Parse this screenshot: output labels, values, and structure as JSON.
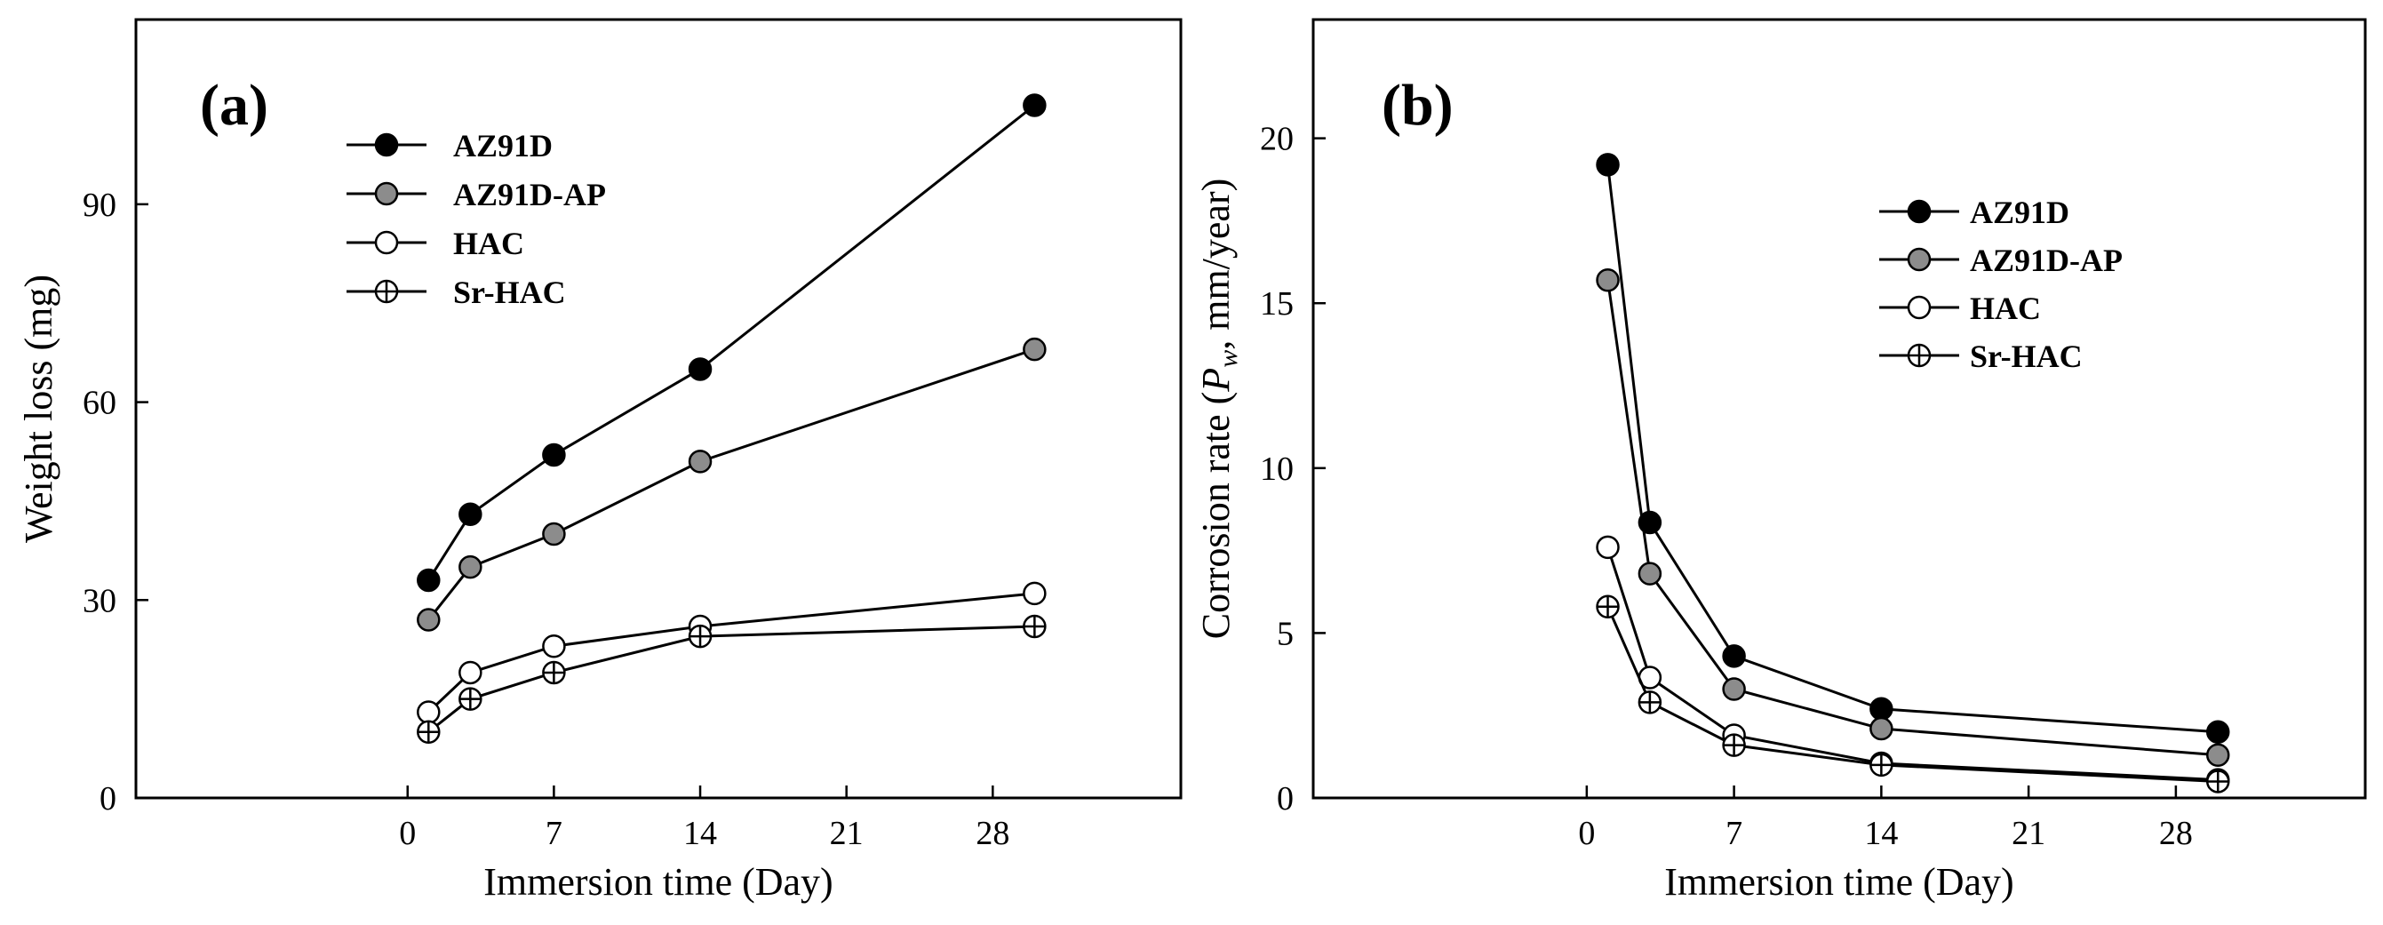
{
  "chart_data": [
    {
      "type": "line",
      "panel_label": "(a)",
      "xlabel": "Immersion time (Day)",
      "ylabel": "Weight loss (mg)",
      "xlim": [
        -13,
        37
      ],
      "ylim": [
        0,
        118
      ],
      "xticks": [
        0,
        7,
        14,
        21,
        28
      ],
      "yticks": [
        0,
        30,
        60,
        90
      ],
      "legend_position": "top-left",
      "x": [
        1,
        3,
        7,
        14,
        30
      ],
      "series": [
        {
          "name": "AZ91D",
          "marker": "filled-black-circle",
          "color": "#000000",
          "values": [
            33,
            43,
            52,
            65,
            105
          ]
        },
        {
          "name": "AZ91D-AP",
          "marker": "filled-gray-circle",
          "color": "#8c8c8c",
          "values": [
            27,
            35,
            40,
            51,
            68
          ]
        },
        {
          "name": "HAC",
          "marker": "open-circle",
          "color": "#ffffff",
          "values": [
            13,
            19,
            23,
            26,
            31
          ]
        },
        {
          "name": "Sr-HAC",
          "marker": "crossed-circle",
          "color": "#ffffff",
          "values": [
            10,
            15,
            19,
            24.5,
            26
          ]
        }
      ]
    },
    {
      "type": "line",
      "panel_label": "(b)",
      "xlabel": "Immersion time (Day)",
      "ylabel_prefix": "Corrosion rate (",
      "ylabel_symbol": "P",
      "ylabel_subscript": "w",
      "ylabel_suffix": ", mm/year)",
      "xlim": [
        -13,
        37
      ],
      "ylim": [
        0,
        23.6
      ],
      "xticks": [
        0,
        7,
        14,
        21,
        28
      ],
      "yticks": [
        0,
        5,
        10,
        15,
        20
      ],
      "legend_position": "top-right",
      "x": [
        1,
        3,
        7,
        14,
        30
      ],
      "series": [
        {
          "name": "AZ91D",
          "marker": "filled-black-circle",
          "color": "#000000",
          "values": [
            19.2,
            8.35,
            4.3,
            2.7,
            2.0
          ]
        },
        {
          "name": "AZ91D-AP",
          "marker": "filled-gray-circle",
          "color": "#8c8c8c",
          "values": [
            15.7,
            6.8,
            3.3,
            2.1,
            1.3
          ]
        },
        {
          "name": "HAC",
          "marker": "open-circle",
          "color": "#ffffff",
          "values": [
            7.6,
            3.65,
            1.9,
            1.05,
            0.55
          ]
        },
        {
          "name": "Sr-HAC",
          "marker": "crossed-circle",
          "color": "#ffffff",
          "values": [
            5.8,
            2.9,
            1.6,
            1.0,
            0.5
          ]
        }
      ]
    }
  ]
}
